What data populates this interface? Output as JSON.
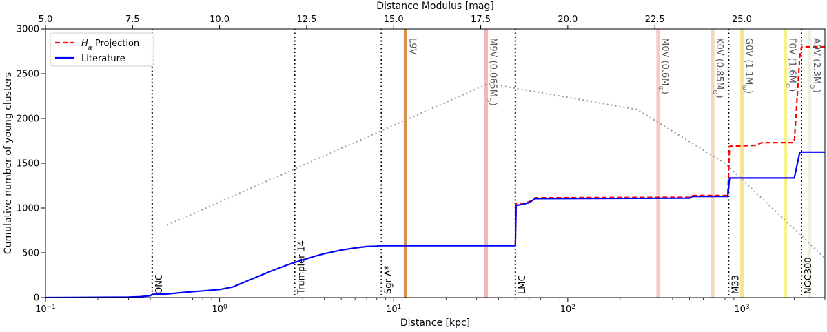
{
  "chart_data": {
    "type": "line",
    "xscale": "log",
    "xlim": [
      0.1,
      3000
    ],
    "ylim": [
      0,
      3000
    ],
    "xlabel": "Distance [kpc]",
    "ylabel": "Cumulative number of young clusters",
    "top_axis": {
      "label": "Distance Modulus [mag]",
      "ticks": [
        5.0,
        7.5,
        10.0,
        12.5,
        15.0,
        17.5,
        20.0,
        22.5,
        25.0
      ],
      "tick_labels": [
        "5.0",
        "7.5",
        "10.0",
        "12.5",
        "15.0",
        "17.5",
        "20.0",
        "22.5",
        "25.0"
      ]
    },
    "x_ticks": [
      {
        "value": 0.1,
        "base": "10",
        "exp": "−1"
      },
      {
        "value": 1,
        "base": "10",
        "exp": "0"
      },
      {
        "value": 10,
        "base": "10",
        "exp": "1"
      },
      {
        "value": 100,
        "base": "10",
        "exp": "2"
      },
      {
        "value": 1000,
        "base": "10",
        "exp": "3"
      }
    ],
    "y_ticks": [
      0,
      500,
      1000,
      1500,
      2000,
      2500,
      3000
    ],
    "legend": {
      "position": "top-left",
      "entries": [
        {
          "series": 0,
          "label_main": "H",
          "label_sub": "α",
          "label_rest": " Projection"
        },
        {
          "series": 1,
          "label_main": "Literature",
          "label_sub": "",
          "label_rest": ""
        }
      ]
    },
    "series": [
      {
        "name": "Hα Projection",
        "color": "#ff0000",
        "style": "dashed",
        "x": [
          50,
          50.5,
          55,
          60,
          65,
          500,
          520,
          700,
          830,
          850,
          1200,
          1300,
          2000,
          2150,
          2200,
          3000
        ],
        "y": [
          580,
          1045,
          1050,
          1070,
          1115,
          1120,
          1140,
          1140,
          1140,
          1690,
          1700,
          1730,
          1730,
          2690,
          2800,
          2800
        ]
      },
      {
        "name": "Literature",
        "color": "#0000ff",
        "style": "solid",
        "x": [
          0.1,
          0.3,
          0.35,
          0.4,
          0.41,
          0.5,
          0.6,
          0.8,
          1.0,
          1.2,
          1.5,
          2.0,
          2.5,
          3.0,
          3.5,
          4.0,
          5.0,
          6.0,
          7.0,
          8.0,
          8.3,
          10,
          20,
          50,
          50.5,
          55,
          60,
          65,
          500,
          520,
          700,
          830,
          850,
          2000,
          2150,
          2200,
          3000
        ],
        "y": [
          0,
          5,
          10,
          20,
          35,
          40,
          55,
          75,
          90,
          120,
          200,
          300,
          370,
          420,
          460,
          490,
          530,
          555,
          570,
          575,
          580,
          580,
          580,
          580,
          1030,
          1040,
          1060,
          1105,
          1110,
          1130,
          1130,
          1130,
          1335,
          1335,
          1620,
          1625,
          1625
        ]
      },
      {
        "name": "",
        "color": "#999999",
        "style": "dotted",
        "x": [
          0.5,
          35,
          250,
          800,
          3000
        ],
        "y": [
          810,
          2390,
          2100,
          1500,
          440
        ]
      }
    ],
    "vlines": [
      {
        "x": 0.41,
        "label": "ONC"
      },
      {
        "x": 2.7,
        "label": "Trumpler 14"
      },
      {
        "x": 8.5,
        "label": "Sgr A*"
      },
      {
        "x": 50,
        "label": "LMC"
      },
      {
        "x": 840,
        "label": "M33"
      },
      {
        "x": 2200,
        "label": "NGC300"
      }
    ],
    "spectral_bands": [
      {
        "x": 11.7,
        "color": "#d2863a",
        "opacity": 0.9,
        "label": "L9V",
        "mass": ""
      },
      {
        "x": 34,
        "color": "#ec9a9a",
        "opacity": 0.7,
        "label": "M9V",
        "mass": "0.065"
      },
      {
        "x": 330,
        "color": "#f0a6a6",
        "opacity": 0.6,
        "label": "M0V",
        "mass": "0.6"
      },
      {
        "x": 680,
        "color": "#eec7a2",
        "opacity": 0.7,
        "label": "K0V",
        "mass": "0.85"
      },
      {
        "x": 1000,
        "color": "#f2df82",
        "opacity": 0.8,
        "label": "G0V",
        "mass": "1.1"
      },
      {
        "x": 1780,
        "color": "#f6f06a",
        "opacity": 0.8,
        "label": "F0V",
        "mass": "1.6"
      },
      {
        "x": 2450,
        "color": "#efeedd",
        "opacity": 0.9,
        "label": "A0V",
        "mass": "2.3"
      }
    ],
    "grid": false
  }
}
